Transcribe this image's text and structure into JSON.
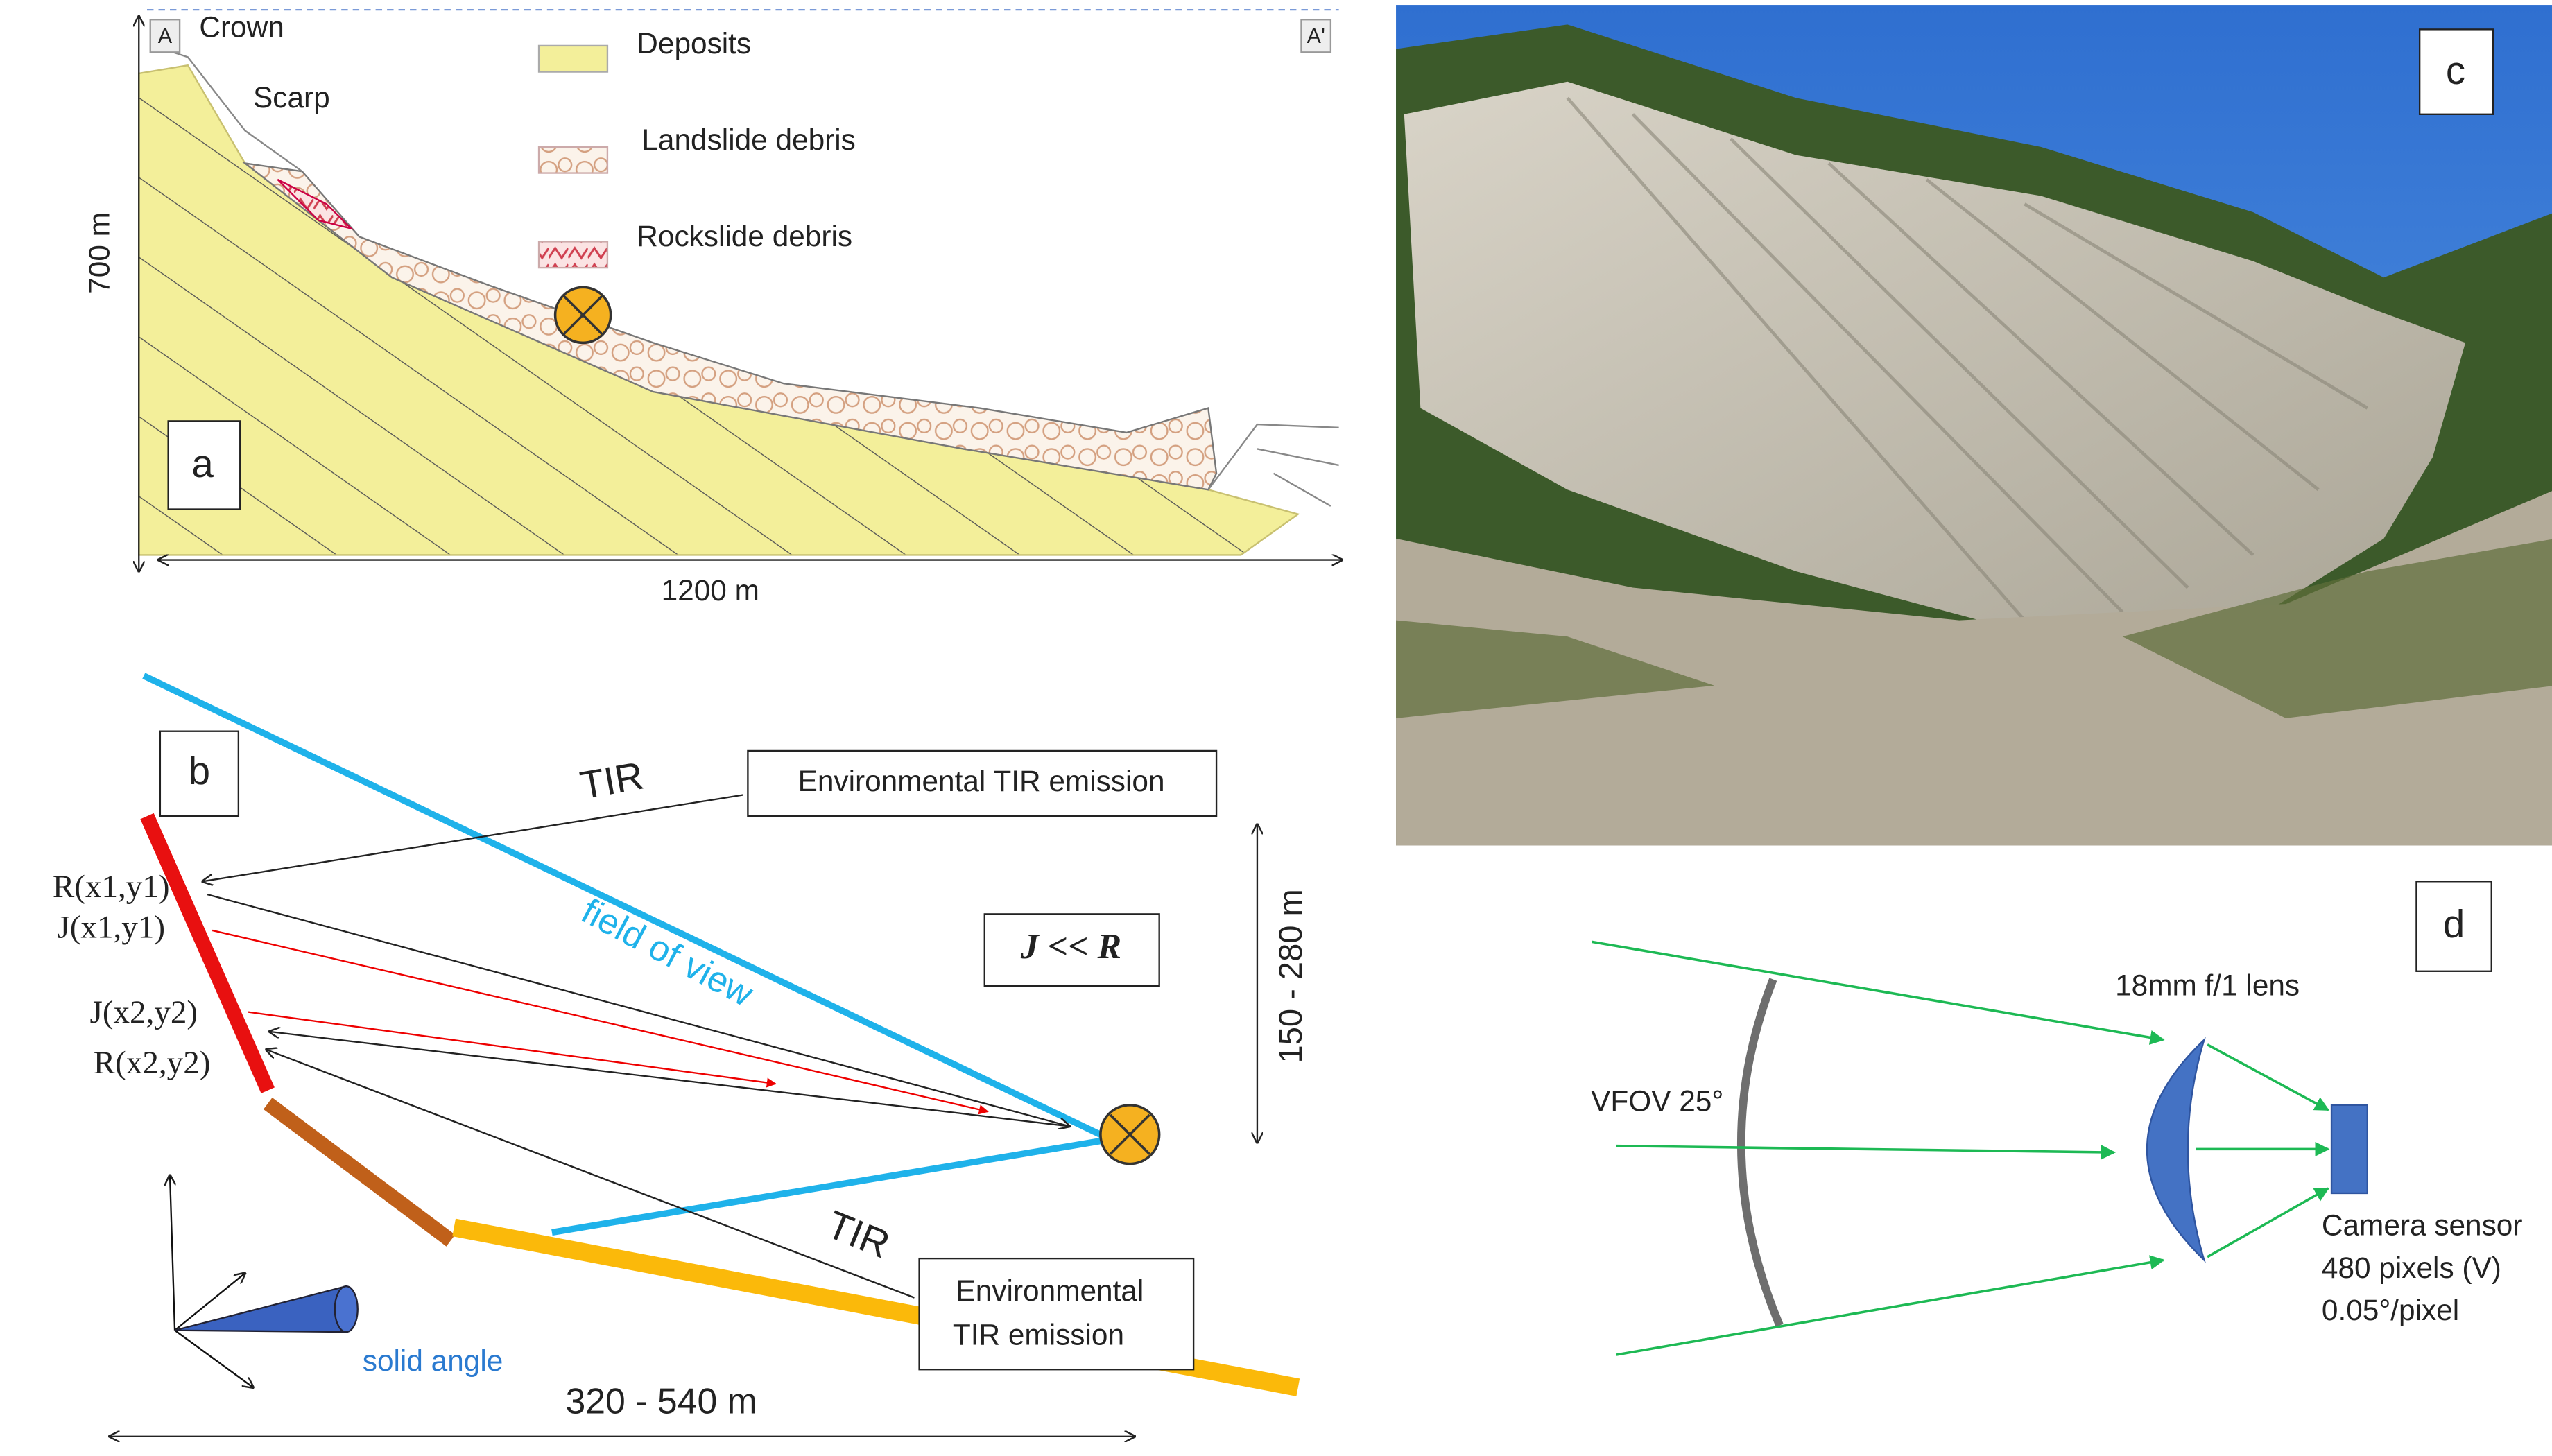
{
  "panel_a": {
    "label": "a",
    "crown": "Crown",
    "scarp": "Scarp",
    "section_start": "A",
    "section_end": "A'",
    "legend": [
      "Deposits",
      "Landslide debris",
      "Rockslide debris"
    ],
    "height": "700 m",
    "width": "1200 m"
  },
  "panel_b": {
    "label": "b",
    "tir_top": "TIR",
    "env_top": "Environmental  TIR emission",
    "field_of_view": "field of view",
    "relation": "J << R",
    "range_v": "150 - 280 m",
    "points": [
      "R(x1,y1)",
      "J(x1,y1)",
      "J(x2,y2)",
      "R(x2,y2)"
    ],
    "tir_bottom": "TIR",
    "env_bottom": [
      "Environmental",
      "TIR emission"
    ],
    "solid_angle": "solid angle",
    "range_h": "320 - 540 m"
  },
  "panel_c": {
    "label": "c"
  },
  "panel_d": {
    "label": "d",
    "lens": "18mm  f/1 lens",
    "vfov": "VFOV 25°",
    "sensor": [
      "Camera sensor",
      "480 pixels (V)",
      "0.05°/pixel"
    ]
  }
}
